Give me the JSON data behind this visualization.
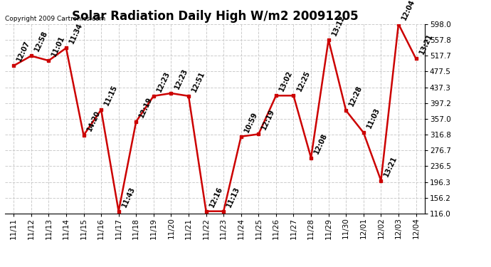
{
  "title": "Solar Radiation Daily High W/m2 20091205",
  "copyright": "Copyright 2009 Cartronics.com",
  "dates": [
    "11/11",
    "11/12",
    "11/13",
    "11/14",
    "11/15",
    "11/16",
    "11/17",
    "11/18",
    "11/19",
    "11/20",
    "11/21",
    "11/22",
    "11/23",
    "11/24",
    "11/25",
    "11/26",
    "11/27",
    "11/28",
    "11/29",
    "11/30",
    "12/01",
    "12/02",
    "12/03",
    "12/04"
  ],
  "values": [
    492,
    517,
    505,
    537,
    315,
    380,
    122,
    350,
    415,
    422,
    415,
    122,
    122,
    312,
    318,
    416,
    416,
    258,
    558,
    378,
    322,
    200,
    598,
    510
  ],
  "labels": [
    "12:07",
    "12:58",
    "11:01",
    "11:34",
    "14:20",
    "11:15",
    "11:43",
    "12:19",
    "12:23",
    "12:23",
    "12:51",
    "12:16",
    "11:13",
    "10:59",
    "12:19",
    "13:02",
    "12:25",
    "12:08",
    "13:12",
    "12:28",
    "11:03",
    "13:21",
    "12:04",
    "13:21"
  ],
  "ylim_min": 116.0,
  "ylim_max": 598.0,
  "yticks": [
    116.0,
    156.2,
    196.3,
    236.5,
    276.7,
    316.8,
    357.0,
    397.2,
    437.3,
    477.5,
    517.7,
    557.8,
    598.0
  ],
  "ytick_labels": [
    "116.0",
    "156.2",
    "196.3",
    "236.5",
    "276.7",
    "316.8",
    "357.0",
    "397.2",
    "437.3",
    "477.5",
    "517.7",
    "557.8",
    "598.0"
  ],
  "line_color": "#cc0000",
  "bg_color": "#ffffff",
  "grid_color": "#cccccc",
  "title_fontsize": 12,
  "annot_fontsize": 7,
  "tick_fontsize": 7.5
}
